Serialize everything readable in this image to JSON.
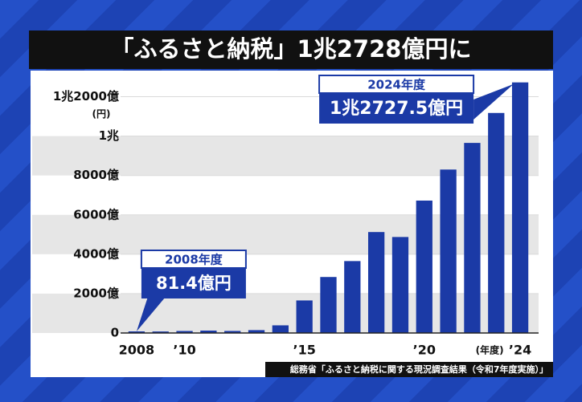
{
  "chart_data": {
    "type": "bar",
    "title": "「ふるさと納税」1兆2728億円に",
    "categories": [
      "2008",
      null,
      "’10",
      null,
      null,
      null,
      null,
      "’15",
      null,
      null,
      null,
      null,
      "’20",
      null,
      null,
      null,
      "’24"
    ],
    "values": [
      81.4,
      77,
      102,
      122,
      104,
      146,
      389,
      1653,
      2844,
      3653,
      5127,
      4875,
      6725,
      8302,
      9654,
      11175,
      12727.5
    ],
    "color": "#1b3aa6",
    "ylim": [
      0,
      13000
    ],
    "yticks": [
      0,
      {
        "value": 2000,
        "label": "2000億"
      },
      {
        "value": 4000,
        "label": "4000億"
      },
      {
        "value": 6000,
        "label": "6000億"
      },
      {
        "value": 8000,
        "label": "8000億"
      },
      {
        "value": 10000,
        "label": "1兆"
      },
      {
        "value": 12000,
        "label": "1兆2000億"
      }
    ],
    "y_unit": "(円)",
    "x_label": "(年度)",
    "annotations": [
      {
        "index": 0,
        "label": "2008年度",
        "text": "81.4億円"
      },
      {
        "index": 16,
        "label": "2024年度",
        "text": "1兆2727.5億円"
      }
    ],
    "source": "総務省「ふるさと納税に関する現況調査結果（令和7年度実施）」",
    "grid": true
  }
}
